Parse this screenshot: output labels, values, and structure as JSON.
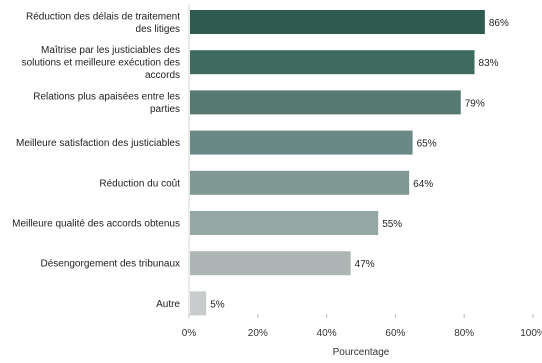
{
  "chart_data": {
    "type": "bar",
    "orientation": "horizontal",
    "categories": [
      [
        "Réduction des délais de traitement",
        "des litiges"
      ],
      [
        "Maîtrise par les justiciables des",
        "solutions et meilleure exécution des",
        "accords"
      ],
      [
        "Relations plus apaisées entre les",
        "parties"
      ],
      [
        "Meilleure satisfaction des justiciables"
      ],
      [
        "Réduction du coût"
      ],
      [
        "Meilleure qualité des accords obtenus"
      ],
      [
        "Désengorgement des tribunaux"
      ],
      [
        "Autre"
      ]
    ],
    "values": [
      86,
      83,
      79,
      65,
      64,
      55,
      47,
      5
    ],
    "value_labels": [
      "86%",
      "83%",
      "79%",
      "65%",
      "64%",
      "55%",
      "47%",
      "5%"
    ],
    "bar_colors": [
      "#2f5a4f",
      "#3f6a5f",
      "#567a71",
      "#6b8984",
      "#7f9893",
      "#97a7a5",
      "#aeb6b5",
      "#c8cccc"
    ],
    "xlabel": "Pourcentage",
    "ylabel": "",
    "xlim": [
      0,
      100
    ],
    "x_ticks": [
      0,
      20,
      40,
      60,
      80,
      100
    ],
    "x_tick_labels": [
      "0%",
      "20%",
      "40%",
      "60%",
      "80%",
      "100%"
    ],
    "grid": false,
    "legend": "none"
  }
}
